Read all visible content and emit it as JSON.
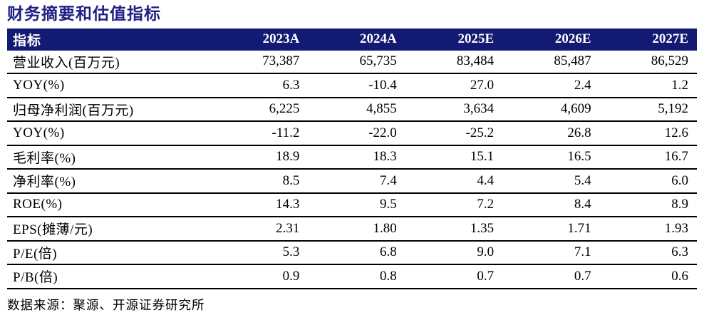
{
  "title": "财务摘要和估值指标",
  "table": {
    "header": [
      "指标",
      "2023A",
      "2024A",
      "2025E",
      "2026E",
      "2027E"
    ],
    "rows": [
      {
        "label": "营业收入(百万元)",
        "values": [
          "73,387",
          "65,735",
          "83,484",
          "85,487",
          "86,529"
        ]
      },
      {
        "label": "YOY(%)",
        "values": [
          "6.3",
          "-10.4",
          "27.0",
          "2.4",
          "1.2"
        ]
      },
      {
        "label": "归母净利润(百万元)",
        "values": [
          "6,225",
          "4,855",
          "3,634",
          "4,609",
          "5,192"
        ]
      },
      {
        "label": "YOY(%)",
        "values": [
          "-11.2",
          "-22.0",
          "-25.2",
          "26.8",
          "12.6"
        ]
      },
      {
        "label": "毛利率(%)",
        "values": [
          "18.9",
          "18.3",
          "15.1",
          "16.5",
          "16.7"
        ]
      },
      {
        "label": "净利率(%)",
        "values": [
          "8.5",
          "7.4",
          "4.4",
          "5.4",
          "6.0"
        ]
      },
      {
        "label": "ROE(%)",
        "values": [
          "14.3",
          "9.5",
          "7.2",
          "8.4",
          "8.9"
        ]
      },
      {
        "label": "EPS(摊薄/元)",
        "values": [
          "2.31",
          "1.80",
          "1.35",
          "1.71",
          "1.93"
        ]
      },
      {
        "label": "P/E(倍)",
        "values": [
          "5.3",
          "6.8",
          "9.0",
          "7.1",
          "6.3"
        ]
      },
      {
        "label": "P/B(倍)",
        "values": [
          "0.9",
          "0.8",
          "0.7",
          "0.7",
          "0.6"
        ]
      }
    ]
  },
  "footer": {
    "source": "数据来源：聚源、开源证券研究所"
  },
  "colors": {
    "header_bg": "#121A73",
    "header_text": "#FFFFFF",
    "title": "#201F85",
    "text": "#000000",
    "row_divider": "#000000"
  }
}
